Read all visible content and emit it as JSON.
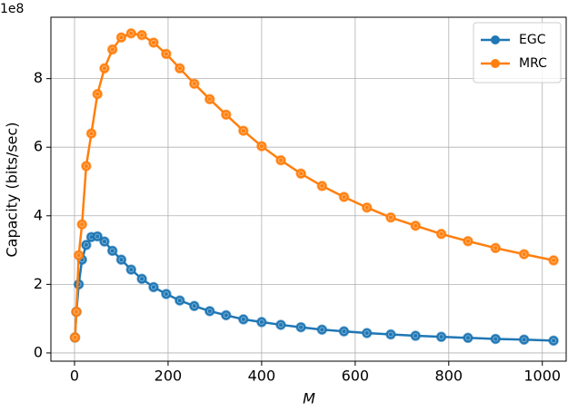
{
  "chart_data": {
    "type": "line",
    "x_label": "M",
    "y_label": "Capacity (bits/sec)",
    "y_offset_text": "1e8",
    "x": [
      1,
      4,
      9,
      16,
      25,
      36,
      49,
      64,
      81,
      100,
      121,
      144,
      169,
      196,
      225,
      256,
      289,
      324,
      361,
      400,
      441,
      484,
      529,
      576,
      625,
      676,
      729,
      784,
      841,
      900,
      961,
      1024
    ],
    "series": [
      {
        "name": "EGC",
        "color": "#1f77b4",
        "values": [
          0.45,
          1.2,
          2.0,
          2.72,
          3.15,
          3.38,
          3.4,
          3.25,
          2.98,
          2.72,
          2.43,
          2.16,
          1.92,
          1.72,
          1.53,
          1.37,
          1.22,
          1.1,
          0.98,
          0.9,
          0.82,
          0.75,
          0.68,
          0.63,
          0.58,
          0.54,
          0.5,
          0.47,
          0.44,
          0.41,
          0.39,
          0.36
        ]
      },
      {
        "name": "MRC",
        "color": "#ff7f0e",
        "values": [
          0.45,
          1.2,
          2.85,
          3.75,
          5.45,
          6.4,
          7.55,
          8.3,
          8.85,
          9.2,
          9.32,
          9.27,
          9.05,
          8.72,
          8.3,
          7.85,
          7.4,
          6.95,
          6.48,
          6.03,
          5.62,
          5.23,
          4.87,
          4.55,
          4.24,
          3.95,
          3.71,
          3.47,
          3.26,
          3.06,
          2.88,
          2.7
        ]
      }
    ],
    "xlim": [
      -50.5,
      1051
    ],
    "ylim": [
      -0.24,
      9.79
    ],
    "xticks": [
      0,
      200,
      400,
      600,
      800,
      1000
    ],
    "yticks": [
      0,
      2,
      4,
      6,
      8
    ],
    "grid": true,
    "legend": "upper right"
  }
}
